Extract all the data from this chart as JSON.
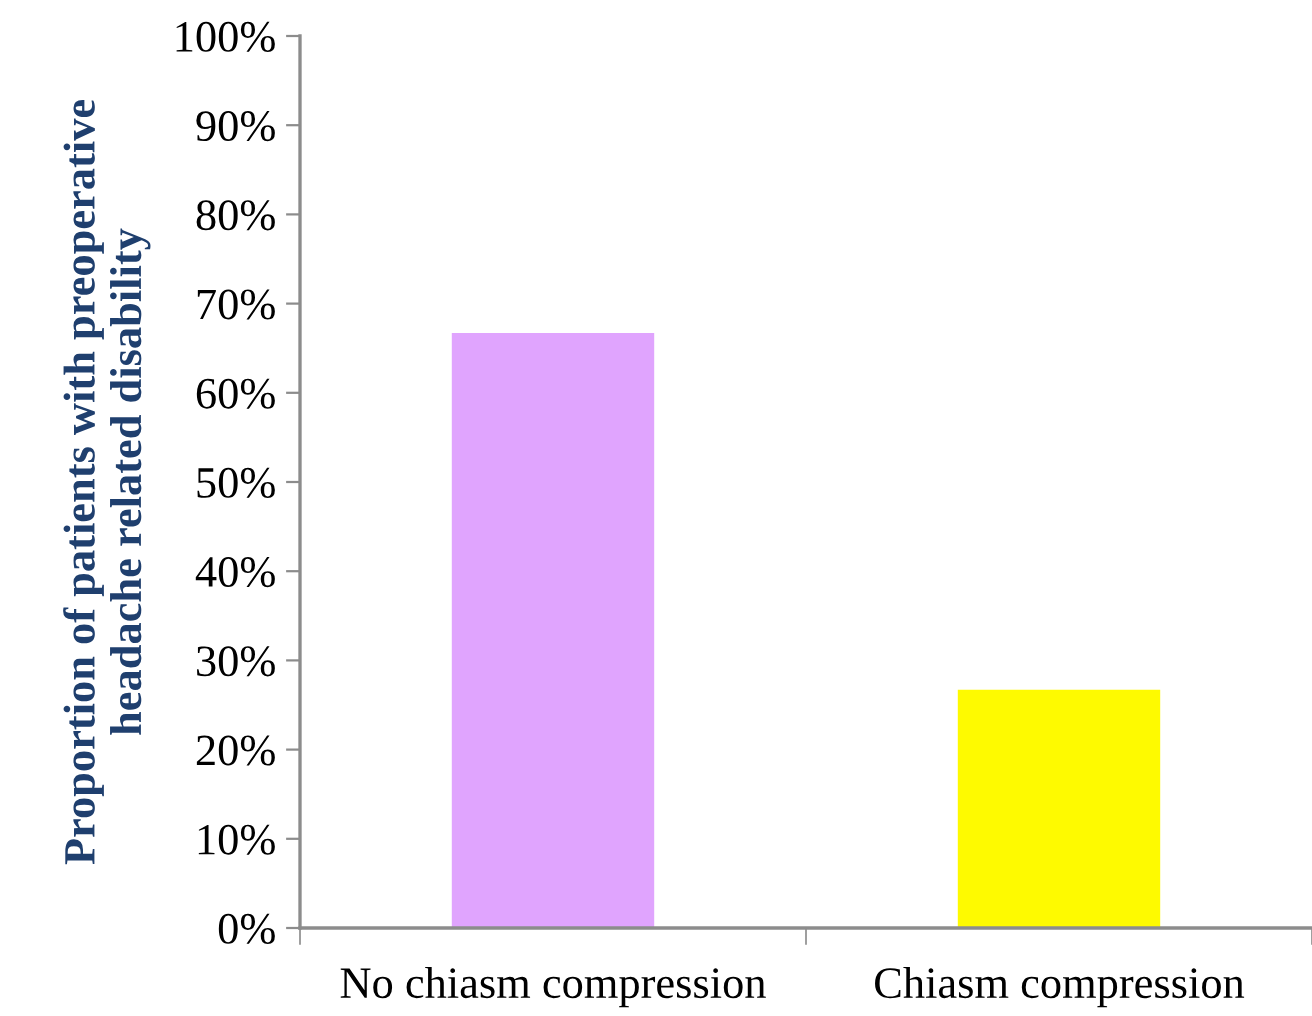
{
  "chart_data": {
    "type": "bar",
    "ylabel": "Proportion of patients with preoperative\nheadache related disability",
    "categories": [
      "No chiasm compression",
      "Chiasm compression"
    ],
    "values": [
      66.7,
      26.7
    ],
    "colors": [
      "#e0a4fe",
      "#fefa00"
    ],
    "ylim": [
      0,
      100
    ],
    "yticks": [
      {
        "value": 0,
        "label": "0%"
      },
      {
        "value": 10,
        "label": "10%"
      },
      {
        "value": 20,
        "label": "20%"
      },
      {
        "value": 30,
        "label": "30%"
      },
      {
        "value": 40,
        "label": "40%"
      },
      {
        "value": 50,
        "label": "50%"
      },
      {
        "value": 60,
        "label": "60%"
      },
      {
        "value": 70,
        "label": "70%"
      },
      {
        "value": 80,
        "label": "80%"
      },
      {
        "value": 90,
        "label": "90%"
      },
      {
        "value": 100,
        "label": "100%"
      }
    ],
    "grid": false,
    "legend": false
  }
}
